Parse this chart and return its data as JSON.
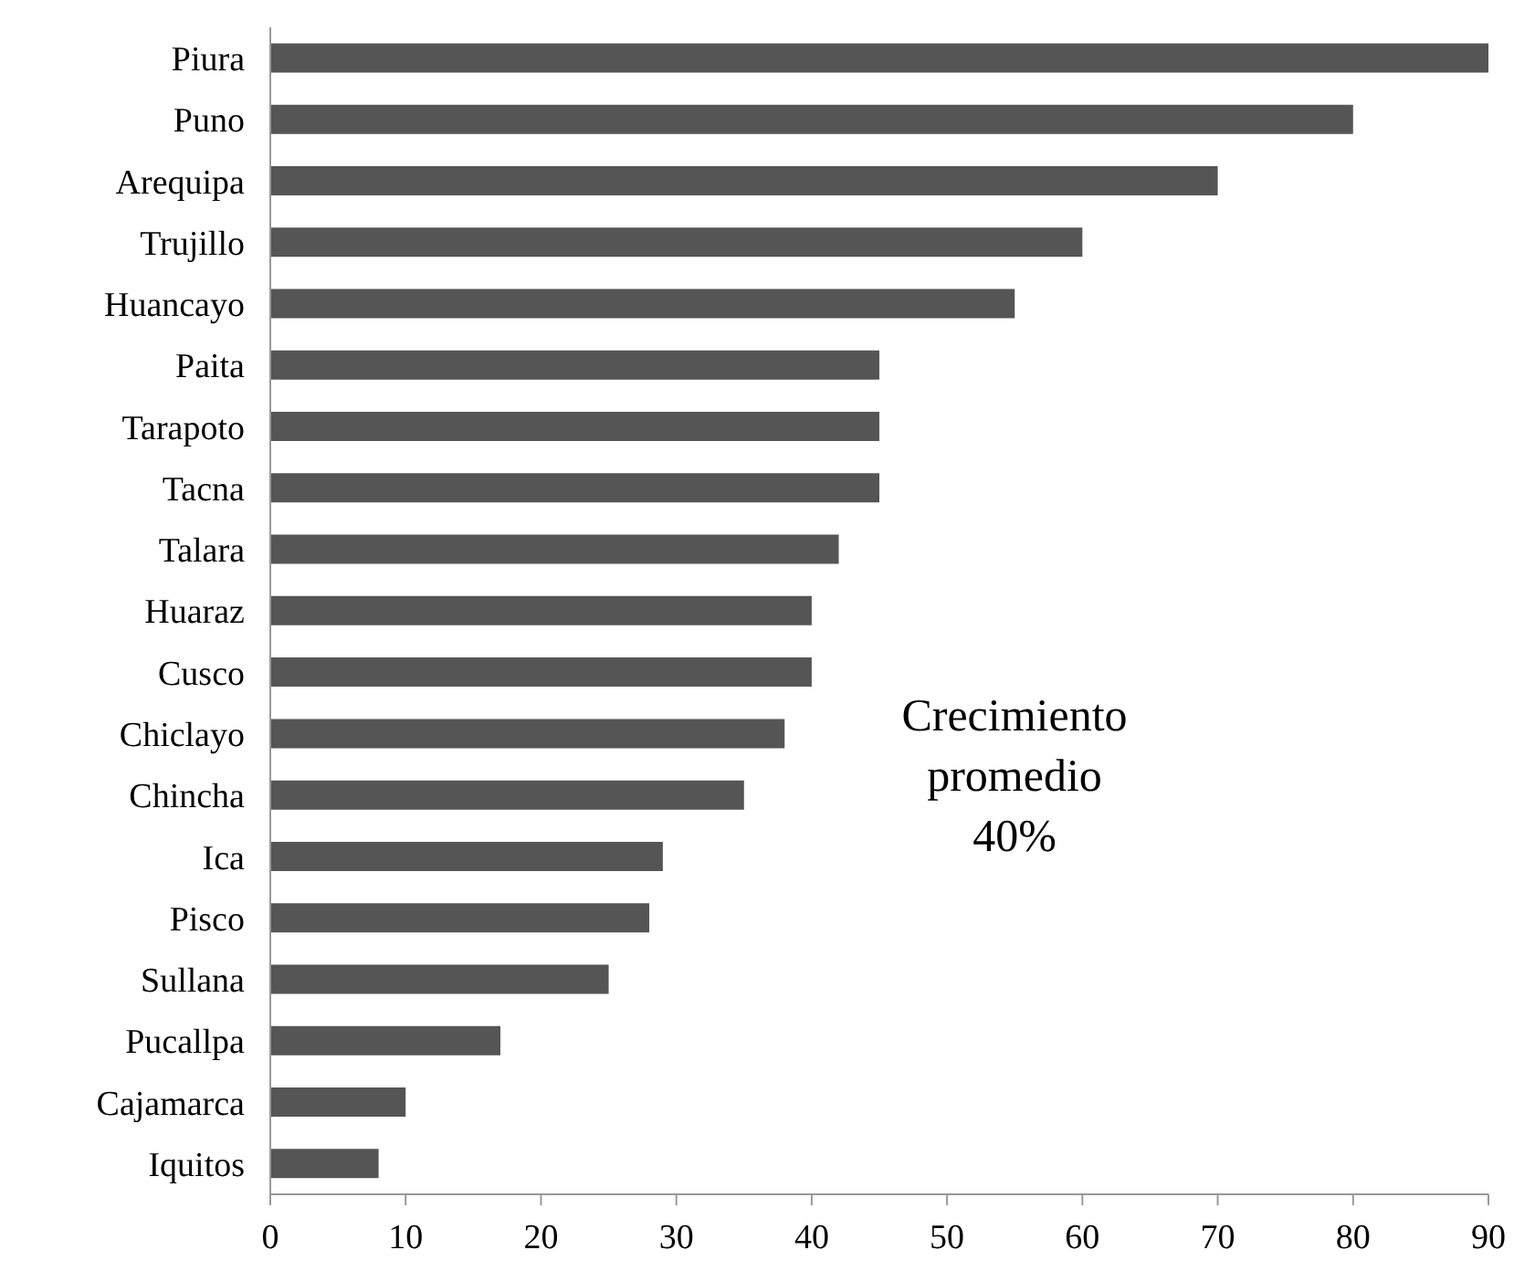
{
  "chart_data": {
    "type": "bar",
    "orientation": "horizontal",
    "categories": [
      "Piura",
      "Puno",
      "Arequipa",
      "Trujillo",
      "Huancayo",
      "Paita",
      "Tarapoto",
      "Tacna",
      "Talara",
      "Huaraz",
      "Cusco",
      "Chiclayo",
      "Chincha",
      "Ica",
      "Pisco",
      "Sullana",
      "Pucallpa",
      "Cajamarca",
      "Iquitos"
    ],
    "values": [
      90,
      80,
      70,
      60,
      55,
      45,
      45,
      45,
      42,
      40,
      40,
      38,
      35,
      29,
      28,
      25,
      17,
      10,
      8
    ],
    "color": "#555555",
    "xlim": [
      0,
      90
    ],
    "xticks": [
      0,
      10,
      20,
      30,
      40,
      50,
      60,
      70,
      80,
      90
    ],
    "grid": false,
    "annotations": [
      "Crecimiento promedio 40%"
    ]
  }
}
